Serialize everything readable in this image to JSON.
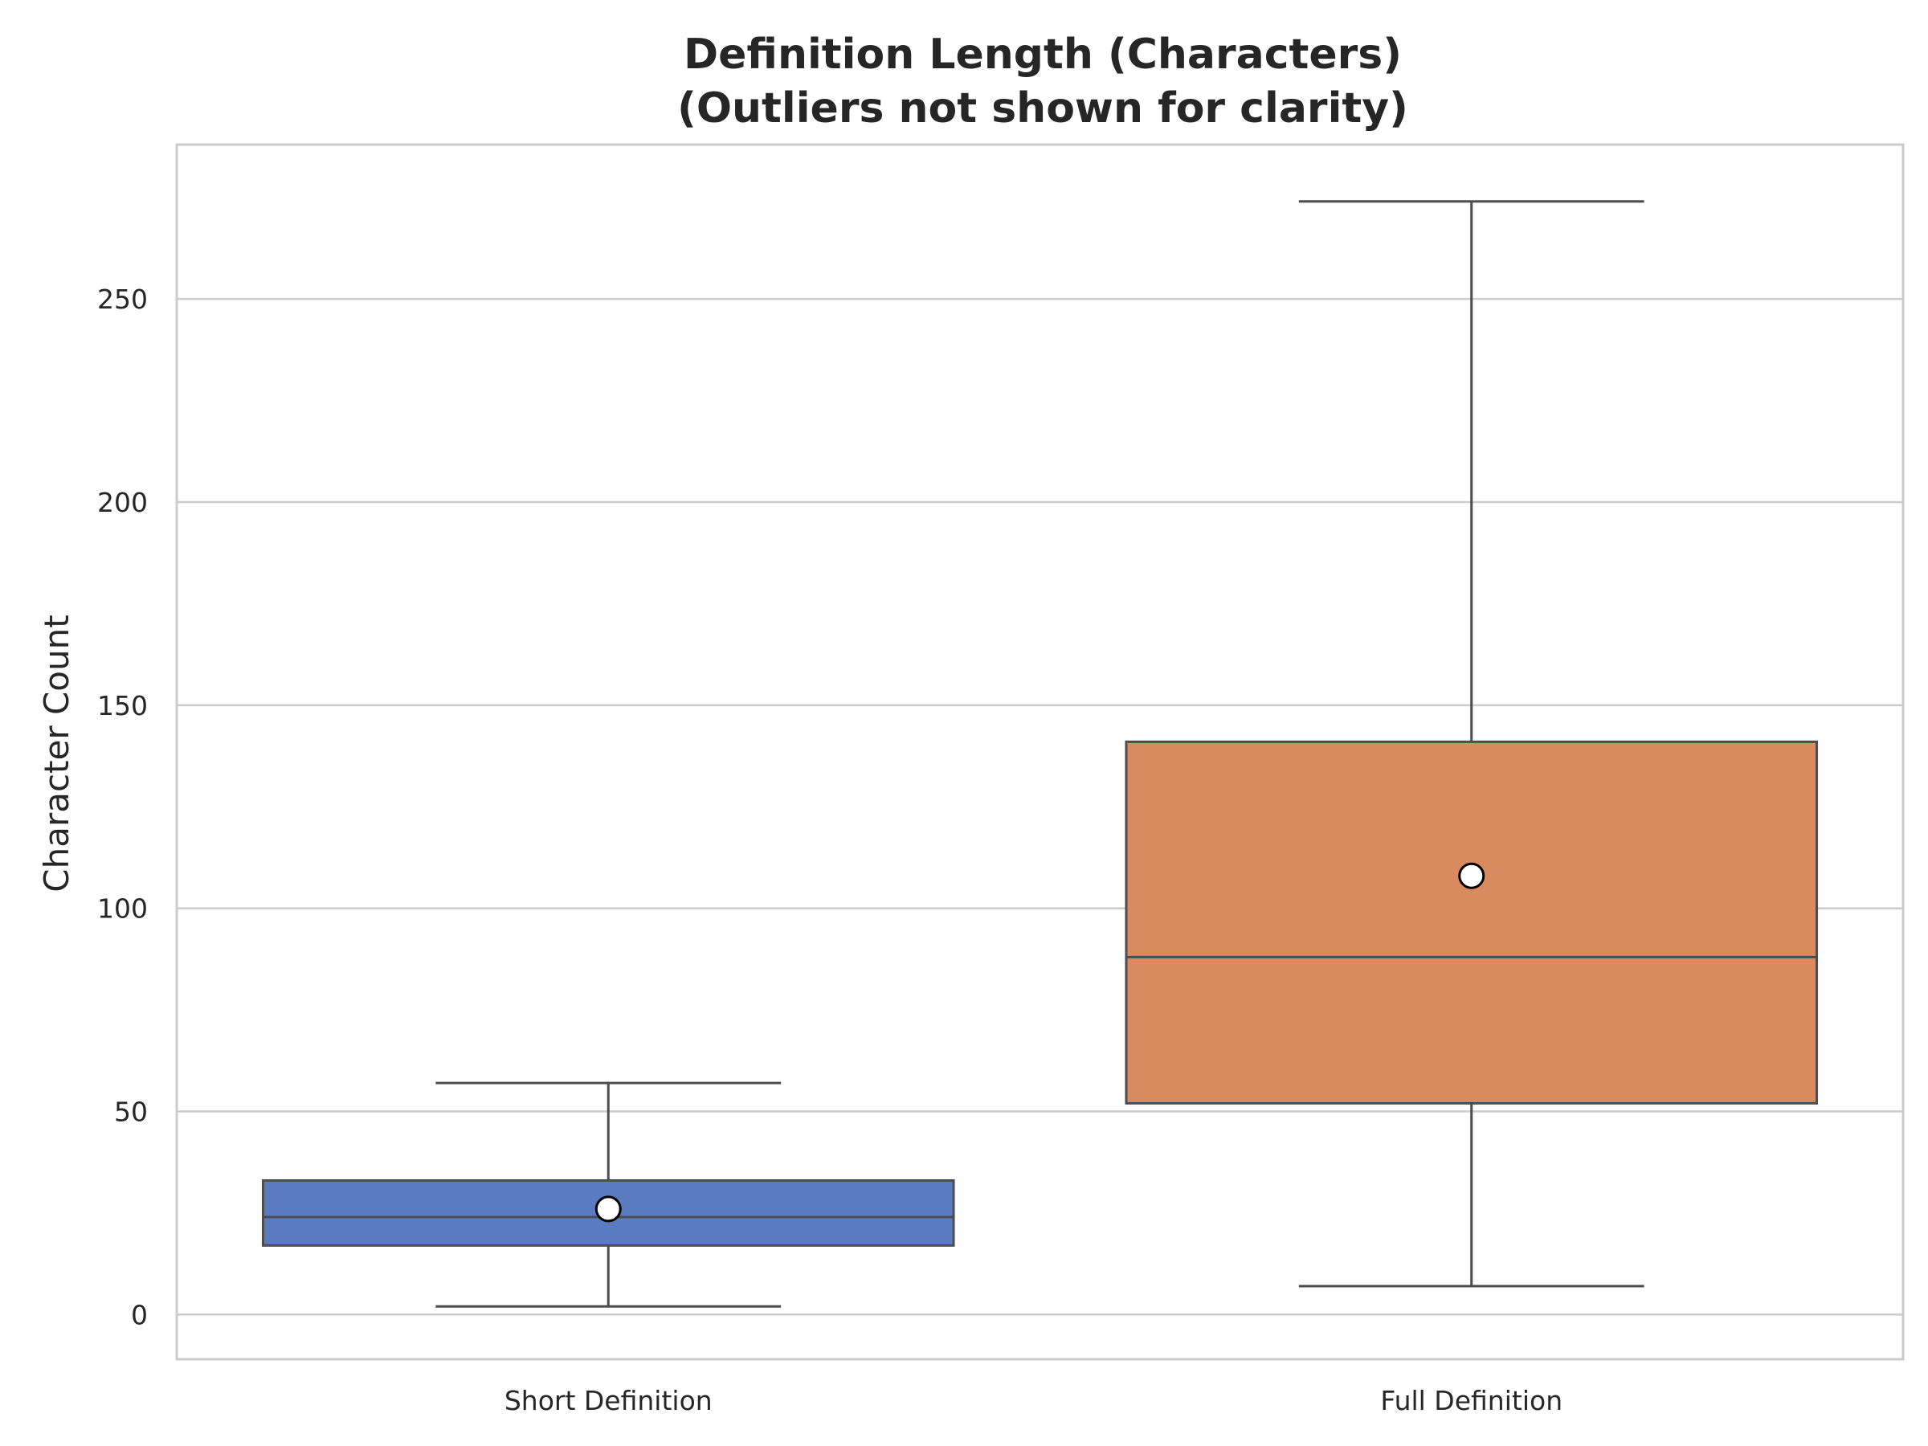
{
  "chart_data": {
    "type": "box",
    "title_lines": [
      "Definition Length (Characters)",
      "(Outliers not shown for clarity)"
    ],
    "xlabel": "",
    "ylabel": "Character Count",
    "ylim": [
      -11,
      288
    ],
    "yticks": [
      0,
      50,
      100,
      150,
      200,
      250
    ],
    "grid": true,
    "legend": "none",
    "categories": [
      "Short Definition",
      "Full Definition"
    ],
    "boxes": [
      {
        "category": "Short Definition",
        "whisker_low": 2,
        "q1": 17,
        "median": 24,
        "q3": 33,
        "whisker_high": 57,
        "mean": 26,
        "color": "#5a7bbf"
      },
      {
        "category": "Full Definition",
        "whisker_low": 7,
        "q1": 52,
        "median": 88,
        "q3": 141,
        "whisker_high": 274,
        "mean": 108,
        "color": "#d98b5f"
      }
    ],
    "colors": {
      "grid": "#cccccc",
      "frame": "#cccccc",
      "lines": "#4d4d4d",
      "mean_marker_fill": "#ffffff",
      "mean_marker_edge": "#000000"
    }
  }
}
